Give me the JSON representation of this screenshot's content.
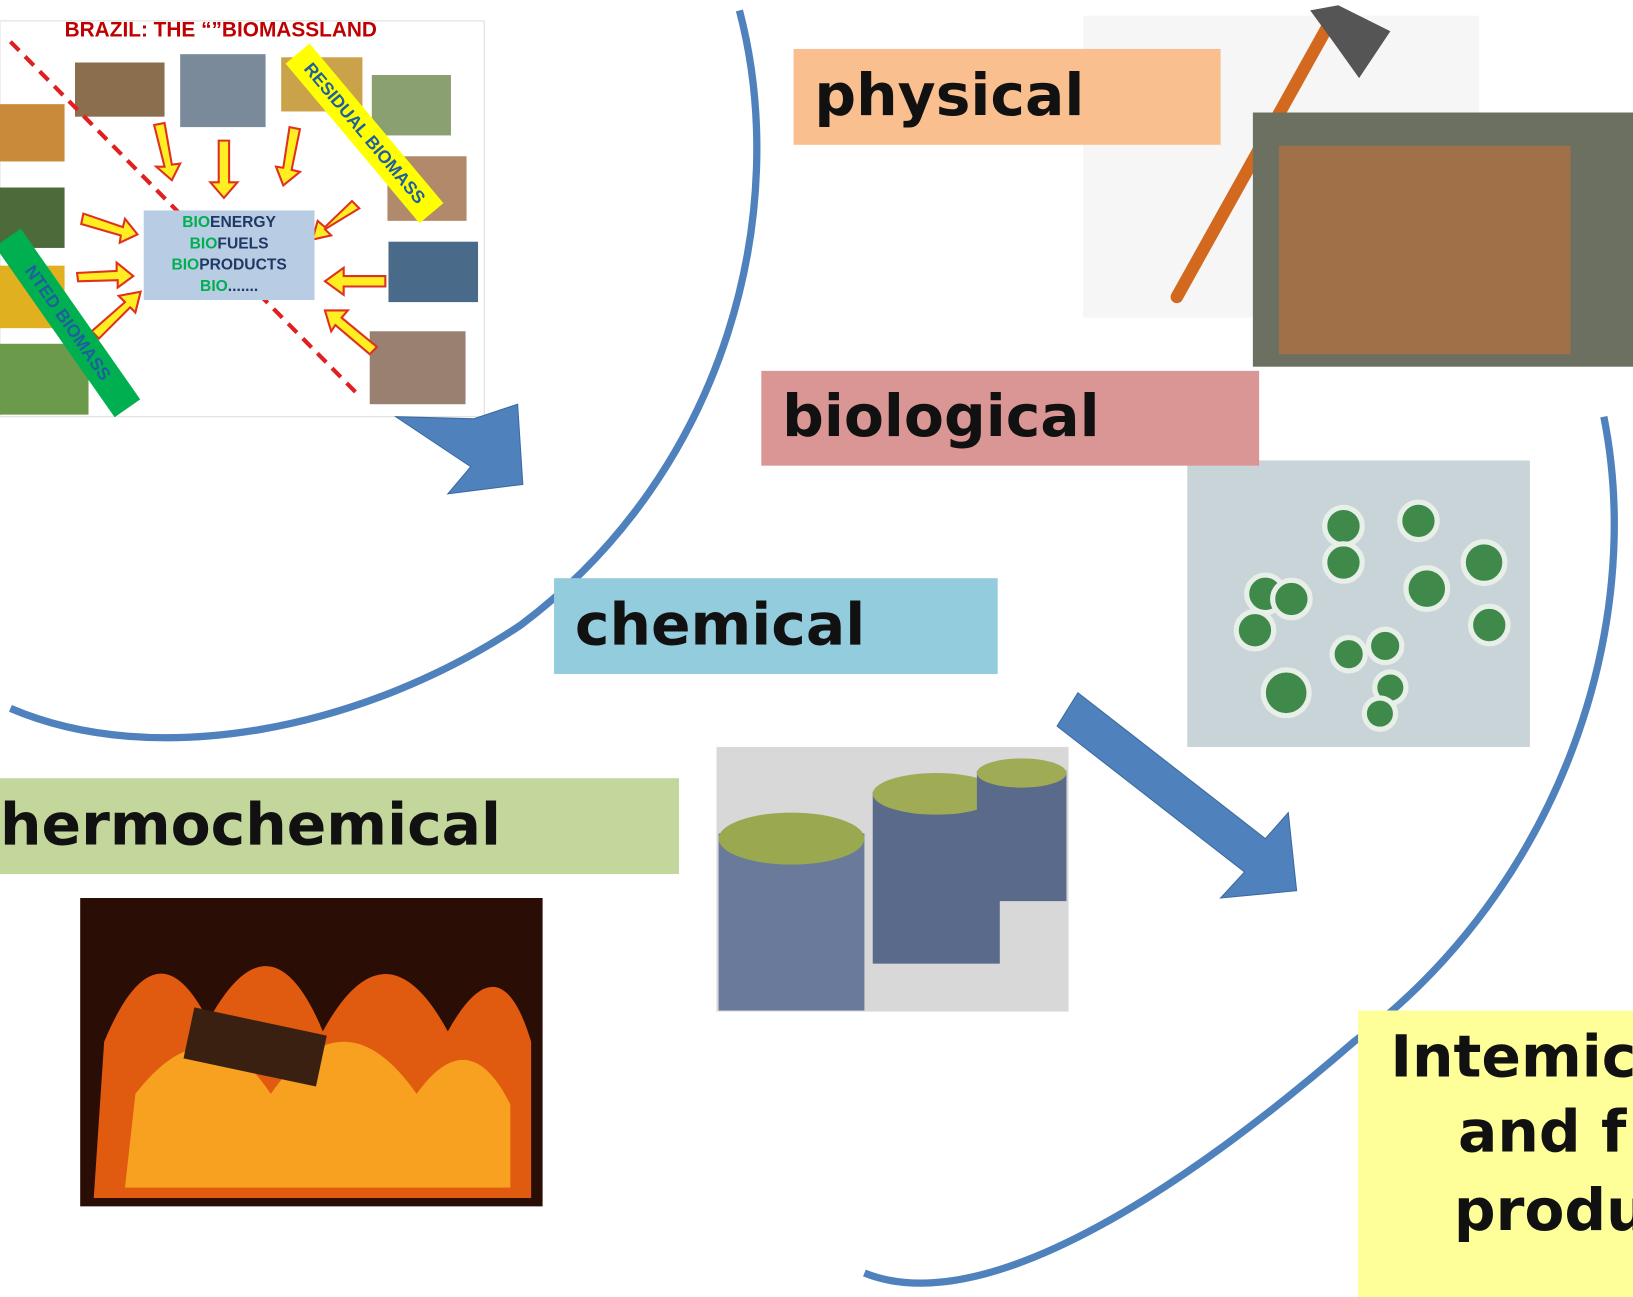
{
  "inset": {
    "title": "BRAZIL: THE “”BIOMASSLAND",
    "banners": [
      "RESIDUAL BIOMASS",
      "NTED BIOMASS"
    ],
    "center": [
      {
        "prefix": "BIO",
        "rest": "ENERGY"
      },
      {
        "prefix": "BIO",
        "rest": "FUELS"
      },
      {
        "prefix": "BIO",
        "rest": "PRODUCTS"
      },
      {
        "prefix": "BIO",
        "rest": "......."
      }
    ]
  },
  "processes": [
    "physical",
    "biological",
    "chemical",
    "hermochemical"
  ],
  "product": [
    "Intemic",
    "and f",
    "produ"
  ]
}
